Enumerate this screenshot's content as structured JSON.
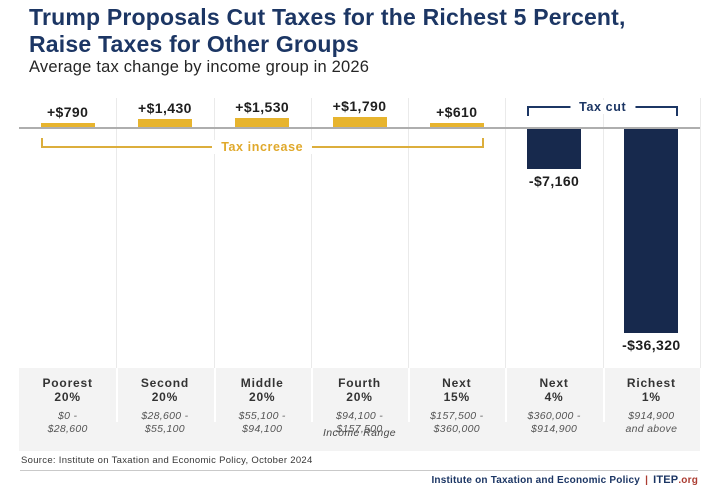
{
  "header": {
    "title": "Trump Proposals Cut Taxes for the Richest 5 Percent, Raise Taxes for Other Groups",
    "subtitle": "Average tax change by income group in 2026"
  },
  "chart_data": {
    "type": "bar",
    "title": "Trump Proposals Cut Taxes for the Richest 5 Percent, Raise Taxes for Other Groups",
    "subtitle": "Average tax change by income group in 2026",
    "xlabel": "Income Range",
    "ylim": [
      -40000,
      2500
    ],
    "grid": true,
    "categories": [
      "Poorest 20%",
      "Second 20%",
      "Middle 20%",
      "Fourth 20%",
      "Next 15%",
      "Next 4%",
      "Richest 1%"
    ],
    "income_ranges": [
      "$0 - $28,600",
      "$28,600 - $55,100",
      "$55,100 - $94,100",
      "$94,100 - $157,500",
      "$157,500 - $360,000",
      "$360,000 - $914,900",
      "$914,900 and above"
    ],
    "values": [
      790,
      1430,
      1530,
      1790,
      610,
      -7160,
      -36320
    ],
    "value_labels": [
      "+$790",
      "+$1,430",
      "+$1,530",
      "+$1,790",
      "+$610",
      "-$7,160",
      "-$36,320"
    ],
    "spans": [
      {
        "label": "Tax increase",
        "from": 0,
        "to": 4,
        "side": "below",
        "color": "gold"
      },
      {
        "label": "Tax cut",
        "from": 5,
        "to": 6,
        "side": "above",
        "color": "navy"
      }
    ]
  },
  "colors": {
    "navy": "#1c3664",
    "bar_navy": "#17294d",
    "bar_gold": "#e7b42e",
    "bracket_gold": "#dcae3c",
    "footer_red": "#ab3c31",
    "band_gray": "#f3f3f3"
  },
  "source_note": "Source: Institute on Taxation and Economic Policy, October 2024",
  "footer": {
    "org": "Institute on Taxation and Economic Policy",
    "separator": "|",
    "brand": "ITEP",
    "brand_suffix": ".org"
  }
}
